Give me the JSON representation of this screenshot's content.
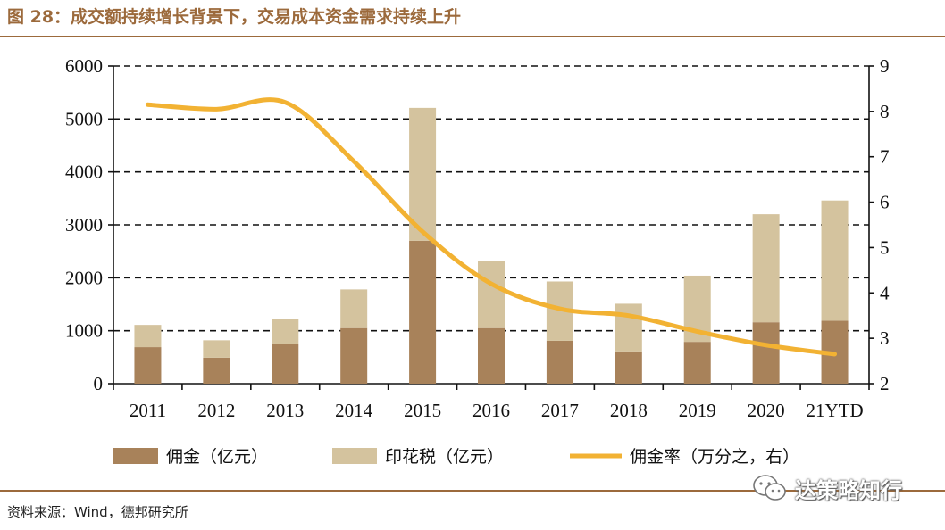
{
  "title": "图 28：成交额持续增长背景下，交易成本资金需求持续上升",
  "source": "资料来源：Wind，德邦研究所",
  "watermark": {
    "text": "达策略知行",
    "icon": "wechat-icon"
  },
  "colors": {
    "brand": "#9C6A3C",
    "commission": "#A8825A",
    "stamp_tax": "#D4C39E",
    "rate_line": "#F2B233"
  },
  "chart_data": {
    "type": "bar",
    "stacked": true,
    "title": "成交额持续增长背景下，交易成本资金需求持续上升",
    "categories": [
      "2011",
      "2012",
      "2013",
      "2014",
      "2015",
      "2016",
      "2017",
      "2018",
      "2019",
      "2020",
      "21YTD"
    ],
    "series": [
      {
        "name": "佣金（亿元）",
        "type": "bar",
        "axis": "left",
        "values": [
          690,
          490,
          750,
          1050,
          2700,
          1050,
          810,
          610,
          790,
          1160,
          1190
        ]
      },
      {
        "name": "印花税（亿元）",
        "type": "bar",
        "axis": "left",
        "values": [
          420,
          330,
          470,
          730,
          2510,
          1270,
          1120,
          900,
          1250,
          2040,
          2270
        ]
      },
      {
        "name": "佣金率（万分之，右）",
        "type": "line",
        "axis": "right",
        "values": [
          8.15,
          8.05,
          8.2,
          6.9,
          5.35,
          4.2,
          3.65,
          3.5,
          3.15,
          2.85,
          2.65
        ]
      }
    ],
    "y_left": {
      "min": 0,
      "max": 6000,
      "ticks": [
        "0",
        "1000",
        "2000",
        "3000",
        "4000",
        "5000",
        "6000"
      ]
    },
    "y_right": {
      "min": 2,
      "max": 9,
      "ticks": [
        "2",
        "3",
        "4",
        "5",
        "6",
        "7",
        "8",
        "9"
      ]
    },
    "grid": "dashed-horizontal",
    "legend": "bottom"
  }
}
